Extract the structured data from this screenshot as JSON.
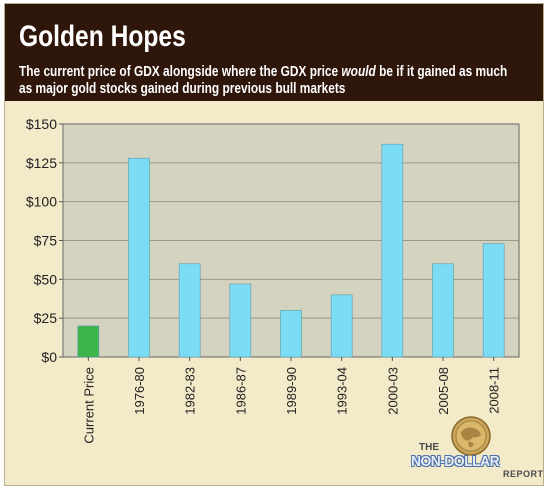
{
  "header": {
    "title": "Golden Hopes",
    "subtitle_part1": "The current price of GDX alongside where the GDX price ",
    "subtitle_italic": "would",
    "subtitle_part2": " be if it gained as much as major gold stocks gained during previous bull markets"
  },
  "chart_data": {
    "type": "bar",
    "title": "Golden Hopes",
    "subtitle": "The current price of GDX alongside where the GDX price would be if it gained as much as major gold stocks gained during previous bull markets",
    "categories": [
      "Current Price",
      "1976-80",
      "1982-83",
      "1986-87",
      "1989-90",
      "1993-04",
      "2000-03",
      "2005-08",
      "2008-11"
    ],
    "values": [
      20,
      128,
      60,
      47,
      30,
      40,
      137,
      60,
      73
    ],
    "colors": [
      "#3cb54a",
      "#7ddcf5",
      "#7ddcf5",
      "#7ddcf5",
      "#7ddcf5",
      "#7ddcf5",
      "#7ddcf5",
      "#7ddcf5",
      "#7ddcf5"
    ],
    "ylim": [
      0,
      150
    ],
    "yticks": [
      0,
      25,
      50,
      75,
      100,
      125,
      150
    ],
    "ytick_labels": [
      "$0",
      "$25",
      "$50",
      "$75",
      "$100",
      "$125",
      "$150"
    ],
    "grid": true,
    "xlabel": "",
    "ylabel": ""
  },
  "brand": {
    "the": "THE",
    "name": "NON-DOLLAR",
    "report": "REPORT"
  },
  "colors": {
    "header_bg": "#2f160b",
    "frame_bg": "#f3eac9",
    "plot_bg": "#d4d3bf",
    "grid": "#9a9888",
    "bar_current": "#3cb54a",
    "bar_other": "#7ddcf5"
  }
}
